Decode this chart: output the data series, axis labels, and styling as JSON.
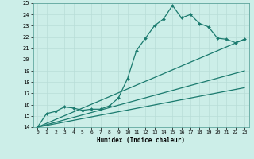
{
  "xlabel": "Humidex (Indice chaleur)",
  "bg_color": "#cceee8",
  "grid_color": "#b8ddd8",
  "line_color": "#1a7a6e",
  "xlim": [
    -0.5,
    23.5
  ],
  "ylim": [
    14,
    25
  ],
  "xticks": [
    0,
    1,
    2,
    3,
    4,
    5,
    6,
    7,
    8,
    9,
    10,
    11,
    12,
    13,
    14,
    15,
    16,
    17,
    18,
    19,
    20,
    21,
    22,
    23
  ],
  "yticks": [
    14,
    15,
    16,
    17,
    18,
    19,
    20,
    21,
    22,
    23,
    24,
    25
  ],
  "series": [
    {
      "x": [
        0,
        1,
        2,
        3,
        4,
        5,
        6,
        7,
        8,
        9,
        10,
        11,
        12,
        13,
        14,
        15,
        16,
        17,
        18,
        19,
        20,
        21,
        22,
        23
      ],
      "y": [
        14,
        15.2,
        15.4,
        15.8,
        15.7,
        15.5,
        15.6,
        15.6,
        15.9,
        16.6,
        18.3,
        20.8,
        21.9,
        23.0,
        23.6,
        24.8,
        23.7,
        24.0,
        23.2,
        22.9,
        21.9,
        21.8,
        21.5,
        21.8
      ],
      "marker": "D",
      "markersize": 2.0,
      "linewidth": 0.9
    },
    {
      "x": [
        0,
        23
      ],
      "y": [
        14,
        21.8
      ],
      "marker": null,
      "linewidth": 0.9
    },
    {
      "x": [
        0,
        23
      ],
      "y": [
        14,
        19.0
      ],
      "marker": null,
      "linewidth": 0.9
    },
    {
      "x": [
        0,
        23
      ],
      "y": [
        14,
        17.5
      ],
      "marker": null,
      "linewidth": 0.9
    }
  ]
}
